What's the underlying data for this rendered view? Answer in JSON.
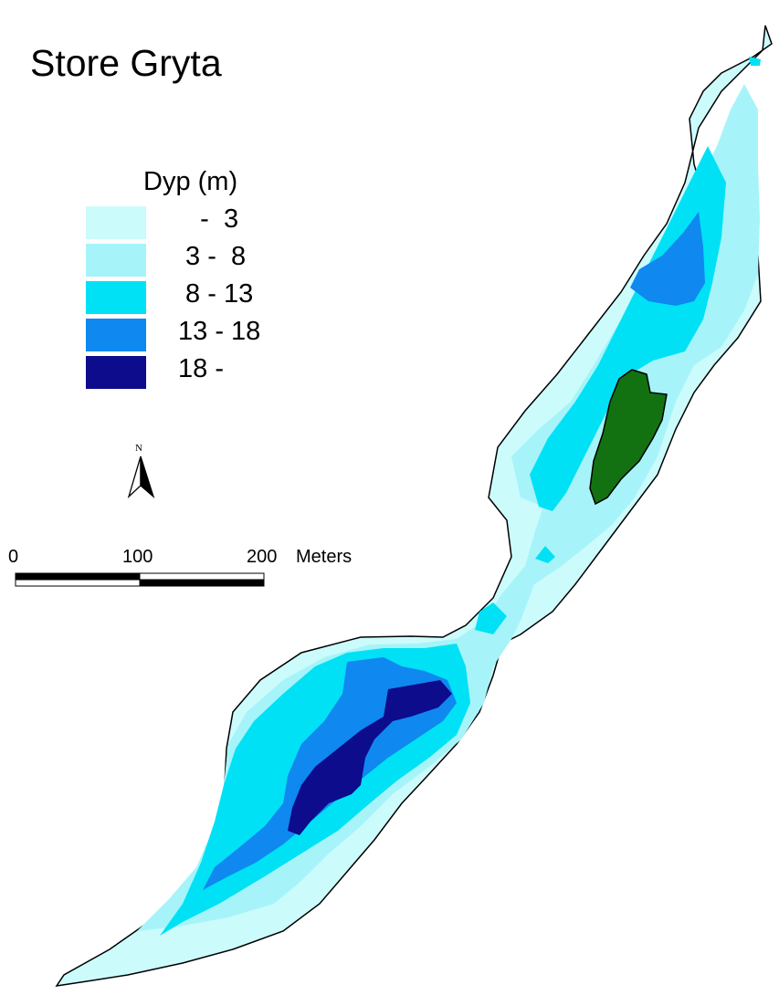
{
  "map": {
    "title": "Store Gryta",
    "island_color": "#127212",
    "shore_color": "#000000"
  },
  "legend": {
    "title": "Dyp (m)",
    "classes": [
      {
        "label": "   -  3",
        "color": "#ccfbfc"
      },
      {
        "label": " 3 -  8",
        "color": "#a6f4f9"
      },
      {
        "label": " 8 - 13",
        "color": "#00e1f6"
      },
      {
        "label": "13 - 18",
        "color": "#0f88f0"
      },
      {
        "label": "18 -",
        "color": "#0c0c8c"
      }
    ]
  },
  "north_arrow": {
    "label": "N",
    "icon": "north-arrow-icon"
  },
  "scale_bar": {
    "ticks": [
      "0",
      "100",
      "200"
    ],
    "unit": "Meters"
  }
}
